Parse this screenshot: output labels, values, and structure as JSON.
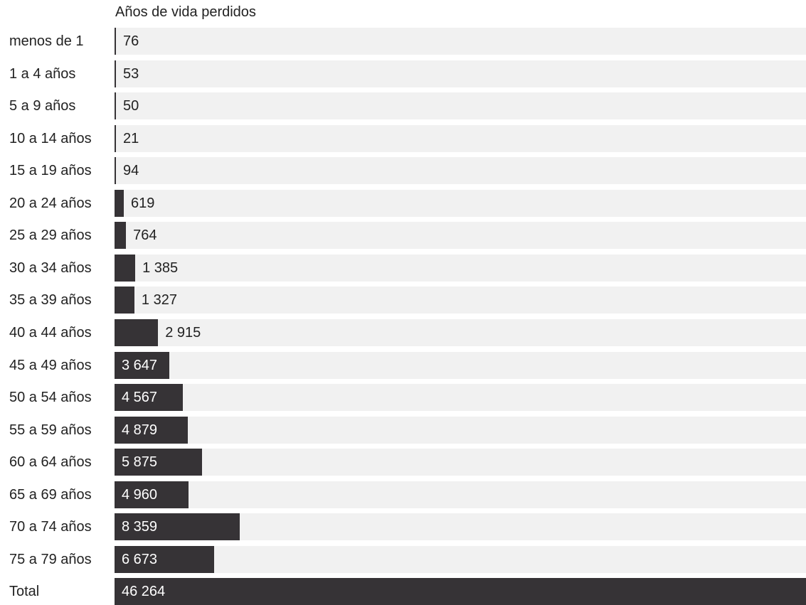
{
  "chart_data": {
    "type": "bar",
    "orientation": "horizontal",
    "title": "Años de vida perdidos",
    "categories": [
      "menos de 1",
      "1 a 4 años",
      "5 a 9 años",
      "10 a 14 años",
      "15 a 19 años",
      "20 a 24 años",
      "25 a 29 años",
      "30 a 34 años",
      "35 a 39 años",
      "40 a 44 años",
      "45 a 49 años",
      "50 a 54 años",
      "55 a 59 años",
      "60 a 64 años",
      "65 a 69 años",
      "70 a 74 años",
      "75 a 79 años",
      "Total"
    ],
    "values": [
      76,
      53,
      50,
      21,
      94,
      619,
      764,
      1385,
      1327,
      2915,
      3647,
      4567,
      4879,
      5875,
      4960,
      8359,
      6673,
      46264
    ],
    "value_labels": [
      "76",
      "53",
      "50",
      "21",
      "94",
      "619",
      "764",
      "1 385",
      "1 327",
      "2 915",
      "3 647",
      "4 567",
      "4 879",
      "5 875",
      "4 960",
      "8 359",
      "6 673",
      "46 264"
    ],
    "xlim": [
      0,
      46264
    ],
    "grid": false,
    "legend": "none",
    "colors": {
      "bar": "#363336",
      "track": "#f1f1f1"
    }
  }
}
